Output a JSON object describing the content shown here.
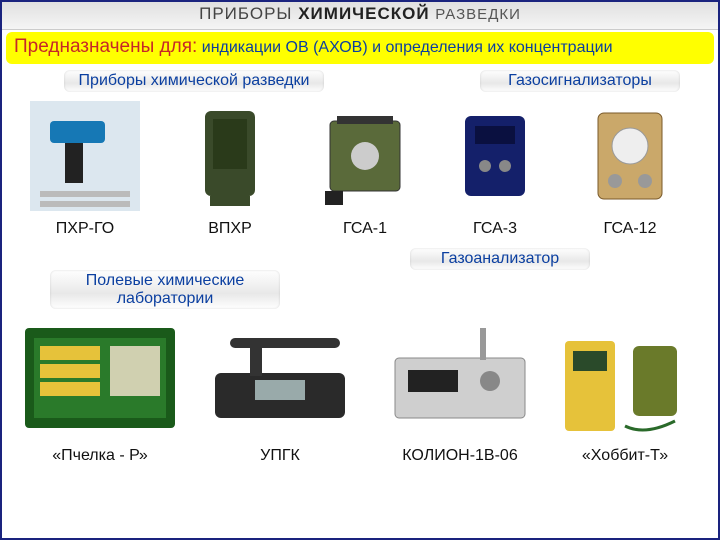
{
  "title": {
    "w1": "ПРИБОРЫ",
    "w2": "ХИМИЧЕСКОЙ",
    "w3": "РАЗВЕДКИ"
  },
  "purpose": {
    "lead": "Предназначены для:",
    "body": "индикации  ОВ (АХОВ) и определения их концентрации",
    "bg": "#ffff00",
    "lead_color": "#c62828",
    "body_color": "#0b3fa0"
  },
  "sections": {
    "top_left": "Приборы химической разведки",
    "top_right": "Газосигнализаторы",
    "mid_left": "Полевые химические лаборатории",
    "mid_right": "Газоанализатор"
  },
  "items_row1": [
    {
      "label": "ПХР-ГО"
    },
    {
      "label": "ВПХР"
    },
    {
      "label": "ГСА-1"
    },
    {
      "label": "ГСА-3"
    },
    {
      "label": "ГСА-12"
    }
  ],
  "items_row2": [
    {
      "label": "«Пчелка - Р»"
    },
    {
      "label": "УПГК"
    },
    {
      "label": "КОЛИОН-1В-06"
    },
    {
      "label": "«Хоббит-Т»"
    }
  ],
  "layout": {
    "row1_widths": [
      150,
      140,
      130,
      130,
      140
    ],
    "row1_img_h": 120,
    "row2_widths": [
      180,
      180,
      180,
      150
    ],
    "row2_img_h": 130
  }
}
